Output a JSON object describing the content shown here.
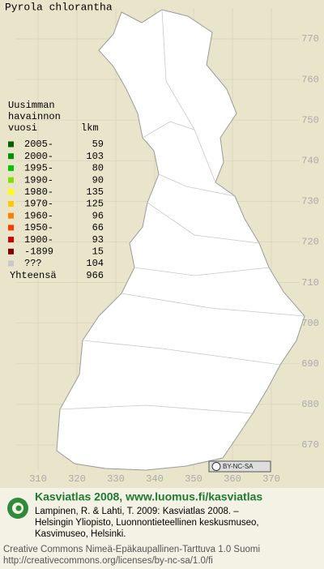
{
  "title": "Pyrola chlorantha",
  "legend": {
    "heading": [
      "Uusimman",
      "havainnon",
      "vuosi"
    ],
    "count_heading": "lkm",
    "rows": [
      {
        "label": "2005-",
        "color": "#006000",
        "count": 59
      },
      {
        "label": "2000-",
        "color": "#009000",
        "count": 103
      },
      {
        "label": "1995-",
        "color": "#00c800",
        "count": 80
      },
      {
        "label": "1990-",
        "color": "#7ee000",
        "count": 90
      },
      {
        "label": "1980-",
        "color": "#ffff00",
        "count": 135
      },
      {
        "label": "1970-",
        "color": "#ffc800",
        "count": 125
      },
      {
        "label": "1960-",
        "color": "#ff8000",
        "count": 96
      },
      {
        "label": "1950-",
        "color": "#ff3c00",
        "count": 66
      },
      {
        "label": "1900-",
        "color": "#d00000",
        "count": 93
      },
      {
        "label": "-1899",
        "color": "#800000",
        "count": 15
      },
      {
        "label": "???",
        "color": "#c8c8c8",
        "count": 104
      }
    ],
    "total_label": "Yhteensä",
    "total": 966
  },
  "map": {
    "xticks": [
      310,
      320,
      330,
      340,
      350,
      360,
      370
    ],
    "yticks": [
      670,
      680,
      690,
      700,
      710,
      720,
      730,
      740,
      750,
      760,
      770
    ]
  },
  "badge": "BY-NC-SA",
  "footer": {
    "site": "Kasviatlas 2008, www.luomus.fi/kasviatlas",
    "citation": [
      "Lampinen, R. & Lahti, T. 2009: Kasviatlas 2008. –",
      "Helsingin Yliopisto, Luonnontieteellinen keskusmuseo,",
      "Kasvimuseo, Helsinki."
    ],
    "license": [
      "Creative Commons Nimeä-Epäkaupallinen-Tarttuva 1.0 Suomi",
      "http://creativecommons.org/licenses/by-nc-sa/1.0/fi"
    ]
  }
}
